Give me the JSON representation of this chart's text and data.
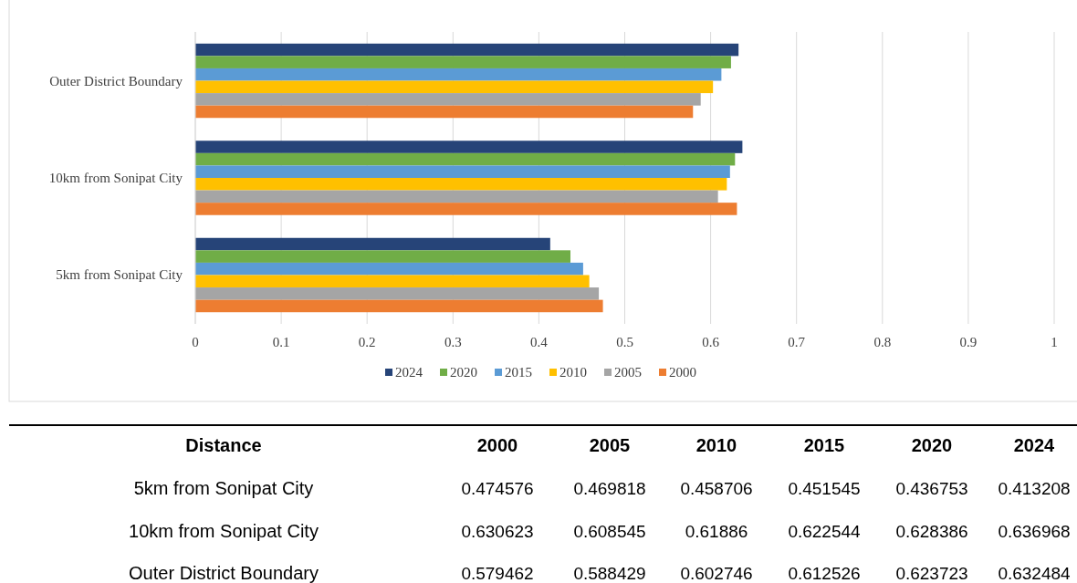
{
  "chart_data": [
    {
      "type": "bar",
      "orientation": "horizontal",
      "categories": [
        "Outer District Boundary",
        "10km from Sonipat City",
        "5km from Sonipat City"
      ],
      "series": [
        {
          "name": "2024",
          "color": "#264478",
          "values": [
            0.632484,
            0.636968,
            0.413208
          ]
        },
        {
          "name": "2020",
          "color": "#70ad47",
          "values": [
            0.623723,
            0.628386,
            0.436753
          ]
        },
        {
          "name": "2015",
          "color": "#5b9bd5",
          "values": [
            0.612526,
            0.622544,
            0.451545
          ]
        },
        {
          "name": "2010",
          "color": "#ffc000",
          "values": [
            0.602746,
            0.61886,
            0.458706
          ]
        },
        {
          "name": "2005",
          "color": "#a5a5a5",
          "values": [
            0.588429,
            0.608545,
            0.469818
          ]
        },
        {
          "name": "2000",
          "color": "#ed7d31",
          "values": [
            0.579462,
            0.630623,
            0.474576
          ]
        }
      ],
      "xlim": [
        0,
        1
      ],
      "xticks": [
        0,
        0.1,
        0.2,
        0.3,
        0.4,
        0.5,
        0.6,
        0.7,
        0.8,
        0.9,
        1
      ],
      "grid": "x",
      "legend": "bottom"
    },
    {
      "type": "heatmap",
      "ylabel": "Distance",
      "data_labels": true,
      "categories": [
        "2000",
        "2005",
        "2010",
        "2015",
        "2020",
        "2024"
      ],
      "y_categories": [
        "5km from Sonipat City",
        "10km from Sonipat City",
        "Outer District Boundary"
      ],
      "cells": [
        [
          0.474576,
          0.469818,
          0.458706,
          0.451545,
          0.436753,
          0.413208
        ],
        [
          0.630623,
          0.608545,
          0.61886,
          0.622544,
          0.628386,
          0.636968
        ],
        [
          0.579462,
          0.588429,
          0.602746,
          0.612526,
          0.623723,
          0.632484
        ]
      ]
    }
  ]
}
